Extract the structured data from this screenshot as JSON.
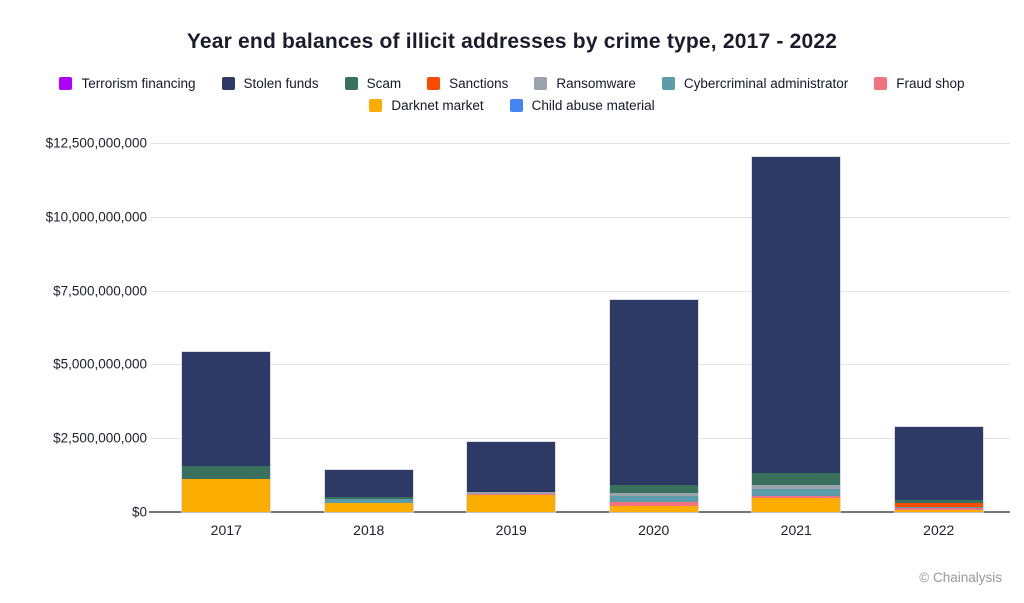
{
  "title": "Year end balances of illicit addresses by crime type, 2017 - 2022",
  "attribution": "© Chainalysis",
  "legend": {
    "rows": [
      [
        "Terrorism financing",
        "Stolen funds",
        "Scam",
        "Sanctions",
        "Ransomware",
        "Cybercriminal administrator",
        "Fraud shop"
      ],
      [
        "Darknet market",
        "Child abuse material"
      ]
    ]
  },
  "chart_data": {
    "type": "bar",
    "subtype": "stacked",
    "title": "Year end balances of illicit addresses by crime type, 2017 - 2022",
    "categories": [
      "2017",
      "2018",
      "2019",
      "2020",
      "2021",
      "2022"
    ],
    "unit": "USD",
    "ylim": [
      0,
      12500000000
    ],
    "grid": true,
    "legend_position": "top",
    "yticks": [
      {
        "value": 0,
        "label": "$0"
      },
      {
        "value": 2500000000,
        "label": "$2,500,000,000"
      },
      {
        "value": 5000000000,
        "label": "$5,000,000,000"
      },
      {
        "value": 7500000000,
        "label": "$7,500,000,000"
      },
      {
        "value": 10000000000,
        "label": "$10,000,000,000"
      },
      {
        "value": 12500000000,
        "label": "$12,500,000,000"
      }
    ],
    "series": [
      {
        "name": "Terrorism financing",
        "color": "#ae00ff",
        "values": [
          0,
          0,
          0,
          0,
          0,
          0
        ]
      },
      {
        "name": "Stolen funds",
        "color": "#2d3a66",
        "values": [
          3850000000,
          900000000,
          1680000000,
          6300000000,
          10710000000,
          2460000000
        ]
      },
      {
        "name": "Scam",
        "color": "#38715e",
        "values": [
          440000000,
          90000000,
          0,
          270000000,
          420000000,
          100000000
        ]
      },
      {
        "name": "Sanctions",
        "color": "#f94c00",
        "values": [
          0,
          0,
          0,
          0,
          0,
          150000000
        ]
      },
      {
        "name": "Ransomware",
        "color": "#9ba3ae",
        "values": [
          0,
          0,
          80000000,
          100000000,
          110000000,
          0
        ]
      },
      {
        "name": "Cybercriminal administrator",
        "color": "#5c9baa",
        "values": [
          0,
          110000000,
          0,
          200000000,
          250000000,
          50000000
        ]
      },
      {
        "name": "Fraud shop",
        "color": "#f0737f",
        "values": [
          0,
          0,
          40000000,
          110000000,
          60000000,
          50000000
        ]
      },
      {
        "name": "Darknet market",
        "color": "#fbad02",
        "values": [
          1130000000,
          320000000,
          570000000,
          220000000,
          480000000,
          70000000
        ]
      },
      {
        "name": "Child abuse material",
        "color": "#4485f3",
        "values": [
          0,
          0,
          0,
          0,
          0,
          0
        ]
      }
    ],
    "stack_order_bottom_to_top": [
      "Child abuse material",
      "Darknet market",
      "Fraud shop",
      "Cybercriminal administrator",
      "Ransomware",
      "Sanctions",
      "Scam",
      "Stolen funds",
      "Terrorism financing"
    ],
    "estimated_totals": [
      5420000000,
      1420000000,
      2370000000,
      7200000000,
      12030000000,
      2880000000
    ]
  }
}
